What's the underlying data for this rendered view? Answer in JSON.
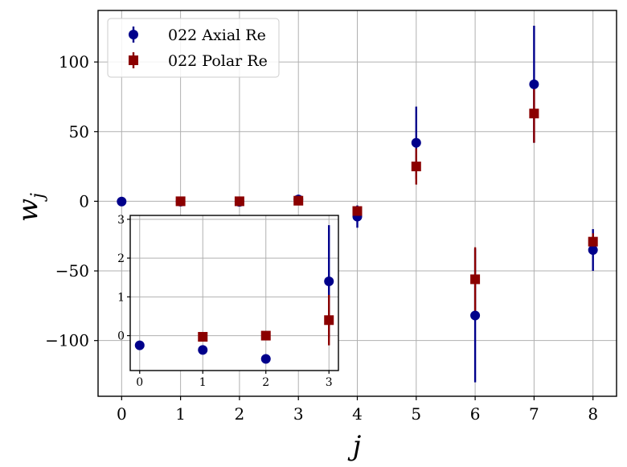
{
  "chart_data": [
    {
      "type": "scatter",
      "title": "",
      "xlabel": "j",
      "ylabel": "w_j",
      "xlim": [
        -0.4,
        8.4
      ],
      "ylim": [
        -140,
        137
      ],
      "x_ticks": [
        0,
        1,
        2,
        3,
        4,
        5,
        6,
        7,
        8
      ],
      "y_ticks": [
        -100,
        -50,
        0,
        50,
        100
      ],
      "grid": true,
      "legend_position": "top-left",
      "series": [
        {
          "name": "022 Axial Re",
          "marker": "circle",
          "color": "#00008b",
          "x": [
            0,
            1,
            2,
            3,
            4,
            5,
            6,
            7,
            8
          ],
          "y": [
            -0.2,
            -0.3,
            -0.4,
            1.3,
            -11,
            42,
            -82,
            84,
            -35
          ],
          "yerr": [
            0,
            0,
            0,
            0,
            8,
            26,
            48,
            42,
            15
          ]
        },
        {
          "name": "022 Polar Re",
          "marker": "square",
          "color": "#8b0000",
          "x": [
            1,
            2,
            3,
            4,
            5,
            6,
            7,
            8
          ],
          "y": [
            0,
            0,
            0.4,
            -7,
            25,
            -56,
            63,
            -29
          ],
          "yerr": [
            0,
            0,
            0,
            3,
            13,
            23,
            21,
            6
          ]
        }
      ]
    },
    {
      "type": "scatter",
      "title": "",
      "xlabel": "",
      "ylabel": "",
      "xlim": [
        -0.15,
        3.15
      ],
      "ylim": [
        -0.9,
        3.1
      ],
      "x_ticks": [
        0,
        1,
        2,
        3
      ],
      "y_ticks": [
        0,
        1,
        2,
        3
      ],
      "grid": true,
      "series": [
        {
          "name": "022 Axial Re",
          "marker": "circle",
          "color": "#00008b",
          "x": [
            0,
            1,
            2,
            3
          ],
          "y": [
            -0.25,
            -0.37,
            -0.6,
            1.4
          ],
          "yerr": [
            0,
            0,
            0,
            1.45
          ]
        },
        {
          "name": "022 Polar Re",
          "marker": "square",
          "color": "#8b0000",
          "x": [
            1,
            2,
            3
          ],
          "y": [
            -0.03,
            0.0,
            0.4
          ],
          "yerr": [
            0,
            0,
            0.65
          ]
        }
      ]
    }
  ]
}
